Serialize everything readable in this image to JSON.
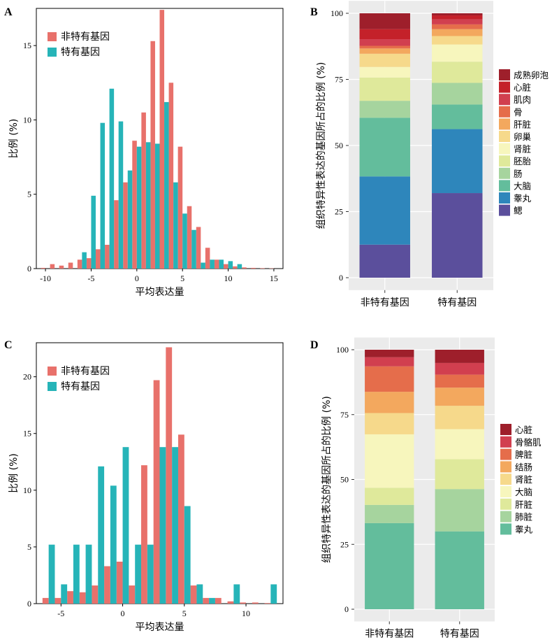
{
  "colors": {
    "non_specific": "#e8716b",
    "specific": "#26b4b8",
    "ggplot_bg": "#ebebeb",
    "ggplot_grid": "#ffffff"
  },
  "panels": {
    "A": "A",
    "B": "B",
    "C": "C",
    "D": "D"
  },
  "chart_data": [
    {
      "panel": "A",
      "type": "bar",
      "xlabel": "平均表达量",
      "ylabel": "比例 (%)",
      "xlim": [
        -11,
        16
      ],
      "ylim": [
        0,
        17.5
      ],
      "xticks": [
        -10,
        -5,
        0,
        5,
        10,
        15
      ],
      "yticks": [
        0,
        5,
        10,
        15
      ],
      "legend": {
        "position": "top-left"
      },
      "x": [
        -10,
        -9,
        -8,
        -7,
        -6,
        -5,
        -4,
        -3,
        -2,
        -1,
        0,
        1,
        2,
        3,
        4,
        5,
        6,
        7,
        8,
        9,
        10,
        11,
        12,
        13,
        14,
        15
      ],
      "series": [
        {
          "name": "非特有基因",
          "color": "#e8716b",
          "values": [
            0.05,
            0.3,
            0.2,
            0.4,
            0.6,
            0.7,
            1.3,
            1.6,
            4.6,
            5.8,
            8.6,
            10.5,
            15.3,
            17.4,
            12.5,
            8.2,
            4.2,
            2.8,
            1.4,
            0.6,
            0.3,
            0.15,
            0.08,
            0.05,
            0.03,
            0.02
          ]
        },
        {
          "name": "特有基因",
          "color": "#26b4b8",
          "values": [
            0,
            0,
            0,
            0,
            1.1,
            4.9,
            9.8,
            12.1,
            9.9,
            6.6,
            8.2,
            8.5,
            8.4,
            11.2,
            5.8,
            3.7,
            2.6,
            0.4,
            0.6,
            0.6,
            0.5,
            0.3,
            0,
            0,
            0,
            0
          ]
        }
      ]
    },
    {
      "panel": "B",
      "type": "bar",
      "stacked": true,
      "ylabel": "组织特异性表达的基因所占的比例 (%)",
      "ylim": [
        0,
        100
      ],
      "yticks": [
        0,
        25,
        50,
        75,
        100
      ],
      "grid": true,
      "categories": [
        "非特有基因",
        "特有基因"
      ],
      "legend": {
        "position": "right"
      },
      "series": [
        {
          "name": "鳃",
          "color": "#5b4f9c",
          "values": [
            12.5,
            32.0
          ]
        },
        {
          "name": "睾丸",
          "color": "#2e86bb",
          "values": [
            25.8,
            24.2
          ]
        },
        {
          "name": "大脑",
          "color": "#63bd9c",
          "values": [
            22.2,
            9.3
          ]
        },
        {
          "name": "肠",
          "color": "#a6d49e",
          "values": [
            6.4,
            8.2
          ]
        },
        {
          "name": "胚胎",
          "color": "#dfe99b",
          "values": [
            8.8,
            8.0
          ]
        },
        {
          "name": "肾脏",
          "color": "#f7f6bd",
          "values": [
            4.0,
            6.5
          ]
        },
        {
          "name": "卵巢",
          "color": "#f6d98b",
          "values": [
            5.0,
            3.2
          ]
        },
        {
          "name": "肝脏",
          "color": "#f3a85e",
          "values": [
            2.0,
            2.6
          ]
        },
        {
          "name": "骨",
          "color": "#e56d4b",
          "values": [
            1.0,
            1.8
          ]
        },
        {
          "name": "肌肉",
          "color": "#d13f4f",
          "values": [
            2.5,
            1.9
          ]
        },
        {
          "name": "心脏",
          "color": "#c4212a",
          "values": [
            3.8,
            1.5
          ]
        },
        {
          "name": "成熟卵泡",
          "color": "#9e1f2b",
          "values": [
            6.0,
            0.8
          ]
        }
      ]
    },
    {
      "panel": "C",
      "type": "bar",
      "xlabel": "平均表达量",
      "ylabel": "比例 (%)",
      "xlim": [
        -7,
        13
      ],
      "ylim": [
        0,
        23
      ],
      "xticks": [
        -5,
        0,
        5,
        10
      ],
      "yticks": [
        0,
        5,
        10,
        15,
        20
      ],
      "legend": {
        "position": "top-left"
      },
      "x": [
        -6,
        -5,
        -4,
        -3,
        -2,
        -1,
        0,
        1,
        2,
        3,
        4,
        5,
        6,
        7,
        8,
        9,
        10,
        11,
        12
      ],
      "series": [
        {
          "name": "非特有基因",
          "color": "#e8716b",
          "values": [
            0.5,
            0.5,
            1.1,
            1.0,
            1.6,
            3.3,
            3.7,
            1.6,
            12.2,
            19.7,
            22.6,
            14.9,
            1.6,
            0.5,
            0.5,
            0.2,
            0.1,
            0.1,
            0.05
          ]
        },
        {
          "name": "特有基因",
          "color": "#26b4b8",
          "values": [
            5.2,
            1.7,
            5.2,
            5.2,
            12.1,
            10.4,
            13.8,
            5.2,
            5.2,
            13.8,
            13.8,
            8.6,
            1.7,
            0.5,
            0,
            1.7,
            0,
            0,
            1.7
          ]
        }
      ]
    },
    {
      "panel": "D",
      "type": "bar",
      "stacked": true,
      "ylabel": "组织特异性表达的基因所占的比例 (%)",
      "ylim": [
        0,
        100
      ],
      "yticks": [
        0,
        25,
        50,
        75,
        100
      ],
      "grid": true,
      "categories": [
        "非特有基因",
        "特有基因"
      ],
      "legend": {
        "position": "right"
      },
      "series": [
        {
          "name": "睾丸",
          "color": "#63bd9c",
          "values": [
            33.2,
            30.0
          ]
        },
        {
          "name": "肺脏",
          "color": "#a6d49e",
          "values": [
            7.0,
            16.3
          ]
        },
        {
          "name": "肝脏",
          "color": "#dfe99b",
          "values": [
            6.6,
            11.5
          ]
        },
        {
          "name": "大脑",
          "color": "#f7f6bd",
          "values": [
            20.6,
            11.6
          ]
        },
        {
          "name": "肾脏",
          "color": "#f6d98b",
          "values": [
            8.2,
            9.0
          ]
        },
        {
          "name": "结肠",
          "color": "#f3a85e",
          "values": [
            8.2,
            7.0
          ]
        },
        {
          "name": "脾脏",
          "color": "#e56d4b",
          "values": [
            9.8,
            5.0
          ]
        },
        {
          "name": "骨骼肌",
          "color": "#d13f4f",
          "values": [
            3.5,
            4.5
          ]
        },
        {
          "name": "心脏",
          "color": "#9e1f2b",
          "values": [
            2.9,
            5.1
          ]
        }
      ]
    }
  ]
}
